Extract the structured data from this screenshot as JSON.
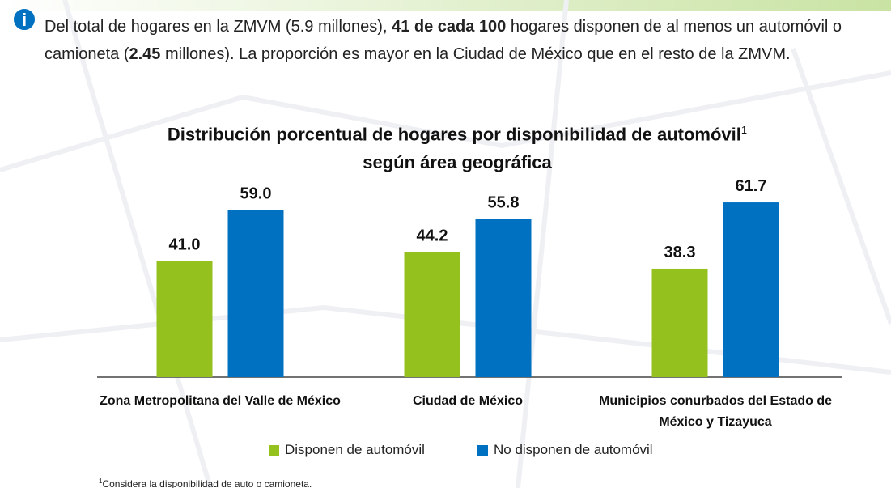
{
  "intro": [
    "Del total de hogares en la ZMVM (5.9 millones), ",
    "41 de cada 100",
    " hogares disponen de al menos un automóvil o camioneta (",
    "2.45",
    " millones). La proporción es mayor en la Ciudad de México que en el resto de la ZMVM."
  ],
  "chart_data": {
    "type": "bar",
    "title_lines": [
      "Distribución porcentual de hogares por disponibilidad de automóvil",
      "según área geográfica"
    ],
    "title_note": "1",
    "categories": [
      "Zona Metropolitana del Valle de México",
      "Ciudad de México",
      "Municipios conurbados del Estado de México y Tizayuca"
    ],
    "series": [
      {
        "name": "Disponen de automóvil",
        "color": "#95c11f",
        "values": [
          41.0,
          44.2,
          38.3
        ],
        "value_labels": [
          "41.0",
          "44.2",
          "38.3"
        ]
      },
      {
        "name": "No disponen de automóvil",
        "color": "#0070c0",
        "values": [
          59.0,
          55.8,
          61.7
        ],
        "value_labels": [
          "59.0",
          "55.8",
          "61.7"
        ]
      }
    ],
    "legend": "bottom",
    "footnote": "Considera la disponibilidad de auto o camioneta."
  }
}
